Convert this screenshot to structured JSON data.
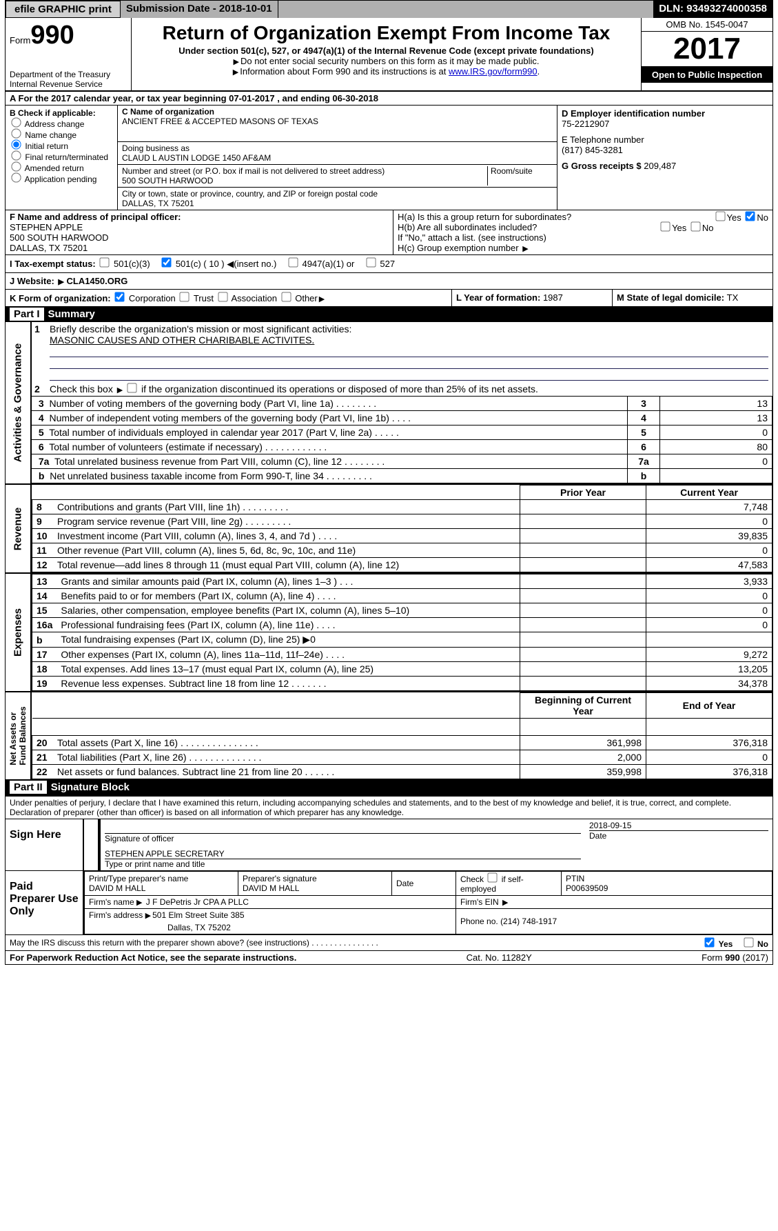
{
  "topbar": {
    "print": "efile GRAPHIC print",
    "submission": "Submission Date - 2018-10-01",
    "dln": "DLN: 93493274000358"
  },
  "header": {
    "form": "Form",
    "num": "990",
    "dept1": "Department of the Treasury",
    "dept2": "Internal Revenue Service",
    "title": "Return of Organization Exempt From Income Tax",
    "subtitle": "Under section 501(c), 527, or 4947(a)(1) of the Internal Revenue Code (except private foundations)",
    "warn1": "Do not enter social security numbers on this form as it may be made public.",
    "warn2": "Information about Form 990 and its instructions is at ",
    "link": "www.IRS.gov/form990",
    "omb": "OMB No. 1545-0047",
    "year": "2017",
    "open": "Open to Public Inspection"
  },
  "period": {
    "label_a": "A  For the 2017 calendar year, or tax year beginning ",
    "begin": "07-01-2017",
    "mid": "    , and ending ",
    "end": "06-30-2018"
  },
  "b": {
    "label": "B Check if applicable:",
    "items": [
      "Address change",
      "Name change",
      "Initial return",
      "Final return/terminated",
      "Amended return",
      "Application pending"
    ],
    "checked_idx": 2
  },
  "c": {
    "name_lbl": "C Name of organization",
    "name": "ANCIENT FREE & ACCEPTED MASONS OF TEXAS",
    "dba_lbl": "Doing business as",
    "dba": "CLAUD L AUSTIN LODGE 1450 AF&AM",
    "addr_lbl": "Number and street (or P.O. box if mail is not delivered to street address)",
    "room_lbl": "Room/suite",
    "addr": "500 SOUTH HARWOOD",
    "city_lbl": "City or town, state or province, country, and ZIP or foreign postal code",
    "city": "DALLAS, TX  75201"
  },
  "d": {
    "ein_lbl": "D Employer identification number",
    "ein": "75-2212907",
    "tel_lbl": "E Telephone number",
    "tel": "(817) 845-3281",
    "gross_lbl": "G Gross receipts $ ",
    "gross": "209,487"
  },
  "f": {
    "label": "F  Name and address of principal officer:",
    "name": "STEPHEN APPLE",
    "addr": "500 SOUTH HARWOOD",
    "city": "DALLAS, TX  75201"
  },
  "h": {
    "a": "H(a)  Is this a group return for subordinates?",
    "b": "H(b)  Are all subordinates included?",
    "b2": "If \"No,\" attach a list. (see instructions)",
    "c": "H(c)  Group exemption number ",
    "yes": "Yes",
    "no": "No"
  },
  "i": {
    "label": "I  Tax-exempt status:",
    "o1": "501(c)(3)",
    "o2": "501(c) ( 10 ) ",
    "o2b": "(insert no.)",
    "o3": "4947(a)(1) or",
    "o4": "527"
  },
  "j": {
    "label": "J  Website: ",
    "val": " CLA1450.ORG"
  },
  "k": {
    "label": "K Form of organization:",
    "opts": [
      "Corporation",
      "Trust",
      "Association",
      "Other"
    ],
    "l": "L Year of formation: ",
    "l_val": "1987",
    "m": "M State of legal domicile: ",
    "m_val": "TX"
  },
  "part1_title": "Summary",
  "p1": {
    "l1": "Briefly describe the organization's mission or most significant activities:",
    "l1_val": "MASONIC CAUSES AND OTHER CHARIBABLE ACTIVITES.",
    "l2": "Check this box ",
    "l2b": " if the organization discontinued its operations or disposed of more than 25% of its net assets.",
    "rows": [
      {
        "n": "3",
        "t": "Number of voting members of the governing body (Part VI, line 1a)   .    .    .    .    .    .    .    .",
        "v": "13"
      },
      {
        "n": "4",
        "t": "Number of independent voting members of the governing body (Part VI, line 1b)    .    .    .    .",
        "v": "13"
      },
      {
        "n": "5",
        "t": "Total number of individuals employed in calendar year 2017 (Part V, line 2a)    .    .    .    .    .",
        "v": "0"
      },
      {
        "n": "6",
        "t": "Total number of volunteers (estimate if necessary)    .    .    .    .    .    .    .    .    .    .    .    .",
        "v": "80"
      },
      {
        "n": "7a",
        "t": "Total unrelated business revenue from Part VIII, column (C), line 12    .    .    .    .    .    .    .    .",
        "v": "0"
      },
      {
        "n": "b",
        "t": "Net unrelated business taxable income from Form 990-T, line 34    .    .    .    .    .    .    .    .    .",
        "v": ""
      }
    ],
    "header_prior": "Prior Year",
    "header_current": "Current Year",
    "rev": [
      {
        "n": "8",
        "t": "Contributions and grants (Part VIII, line 1h)    .    .    .    .    .    .    .    .    .",
        "p": "",
        "c": "7,748"
      },
      {
        "n": "9",
        "t": "Program service revenue (Part VIII, line 2g)    .    .    .    .    .    .    .    .    .",
        "p": "",
        "c": "0"
      },
      {
        "n": "10",
        "t": "Investment income (Part VIII, column (A), lines 3, 4, and 7d )    .    .    .    .",
        "p": "",
        "c": "39,835"
      },
      {
        "n": "11",
        "t": "Other revenue (Part VIII, column (A), lines 5, 6d, 8c, 9c, 10c, and 11e)",
        "p": "",
        "c": "0"
      },
      {
        "n": "12",
        "t": "Total revenue—add lines 8 through 11 (must equal Part VIII, column (A), line 12)",
        "p": "",
        "c": "47,583"
      }
    ],
    "exp": [
      {
        "n": "13",
        "t": "Grants and similar amounts paid (Part IX, column (A), lines 1–3 )    .    .    .",
        "p": "",
        "c": "3,933"
      },
      {
        "n": "14",
        "t": "Benefits paid to or for members (Part IX, column (A), line 4)    .    .    .    .",
        "p": "",
        "c": "0"
      },
      {
        "n": "15",
        "t": "Salaries, other compensation, employee benefits (Part IX, column (A), lines 5–10)",
        "p": "",
        "c": "0"
      },
      {
        "n": "16a",
        "t": "Professional fundraising fees (Part IX, column (A), line 11e)    .    .    .    .",
        "p": "",
        "c": "0"
      },
      {
        "n": "b",
        "t": "Total fundraising expenses (Part IX, column (D), line 25) ▶0",
        "p": "SHADE",
        "c": "SHADE"
      },
      {
        "n": "17",
        "t": "Other expenses (Part IX, column (A), lines 11a–11d, 11f–24e)    .    .    .    .",
        "p": "",
        "c": "9,272"
      },
      {
        "n": "18",
        "t": "Total expenses. Add lines 13–17 (must equal Part IX, column (A), line 25)",
        "p": "",
        "c": "13,205"
      },
      {
        "n": "19",
        "t": "Revenue less expenses. Subtract line 18 from line 12    .    .    .    .    .    .    .",
        "p": "",
        "c": "34,378"
      }
    ],
    "header_boy": "Beginning of Current Year",
    "header_eoy": "End of Year",
    "net": [
      {
        "n": "20",
        "t": "Total assets (Part X, line 16)    .    .    .    .    .    .    .    .    .    .    .    .    .    .    .",
        "p": "361,998",
        "c": "376,318"
      },
      {
        "n": "21",
        "t": "Total liabilities (Part X, line 26)    .    .    .    .    .    .    .    .    .    .    .    .    .    .",
        "p": "2,000",
        "c": "0"
      },
      {
        "n": "22",
        "t": "Net assets or fund balances. Subtract line 21 from line 20 .    .    .    .    .    .",
        "p": "359,998",
        "c": "376,318"
      }
    ]
  },
  "part2_title": "Signature Block",
  "sig": {
    "declare": "Under penalties of perjury, I declare that I have examined this return, including accompanying schedules and statements, and to the best of my knowledge and belief, it is true, correct, and complete. Declaration of preparer (other than officer) is based on all information of which preparer has any knowledge.",
    "sign_here": "Sign Here",
    "sig_of": "Signature of officer",
    "date_lbl": "Date",
    "date": "2018-09-15",
    "name": "STEPHEN APPLE  SECRETARY",
    "name_lbl": "Type or print name and title"
  },
  "prep": {
    "label": "Paid Preparer Use Only",
    "pname_lbl": "Print/Type preparer's name",
    "pname": "DAVID M HALL",
    "psig_lbl": "Preparer's signature",
    "psig": "DAVID M HALL",
    "pdate_lbl": "Date",
    "self_lbl": "Check          if self-employed",
    "ptin_lbl": "PTIN",
    "ptin": "P00639509",
    "firm_lbl": "Firm's name     ",
    "firm": "J F DePetris Jr CPA A PLLC",
    "ein_lbl": "Firm's EIN ",
    "addr_lbl": "Firm's address ",
    "addr": "501 Elm Street Suite 385",
    "city": "Dallas, TX  75202",
    "phone_lbl": "Phone no. ",
    "phone": "(214) 748-1917"
  },
  "discuss": "May the IRS discuss this return with the preparer shown above? (see instructions)    .    .    .    .    .    .    .    .    .    .    .    .    .    .    .",
  "footer": {
    "l": "For Paperwork Reduction Act Notice, see the separate instructions.",
    "c": "Cat. No. 11282Y",
    "r": "Form 990 (2017)"
  }
}
